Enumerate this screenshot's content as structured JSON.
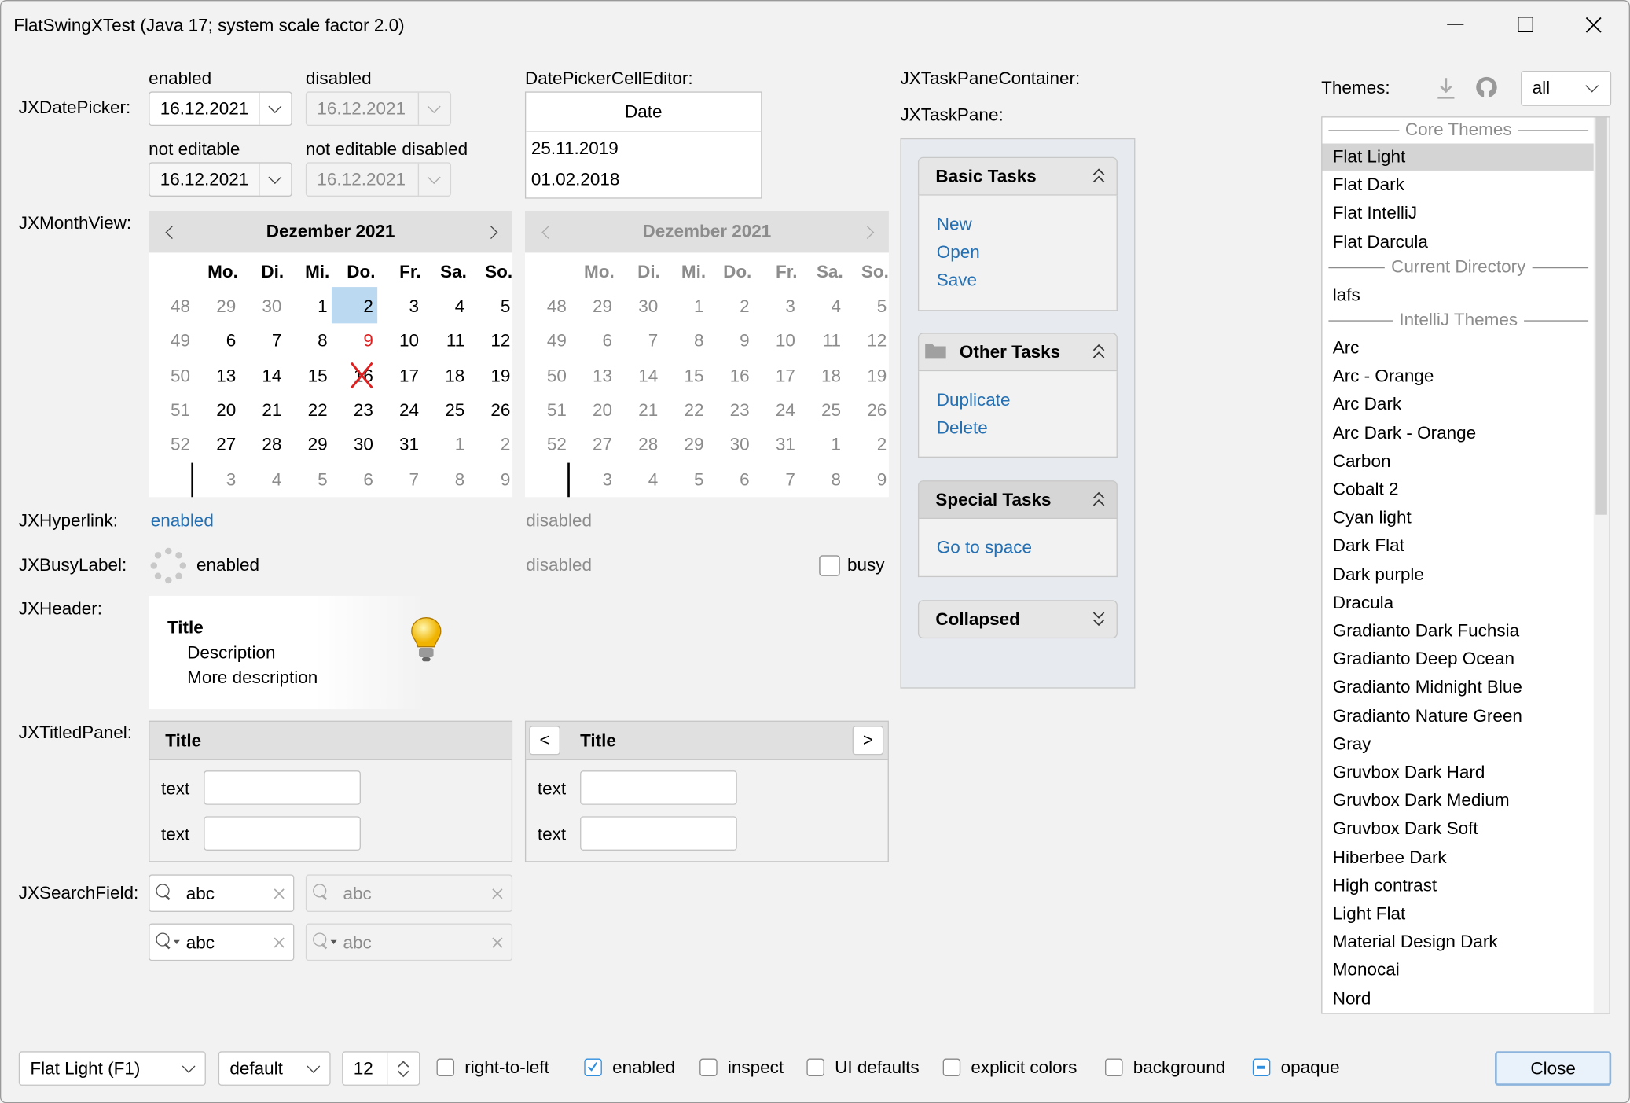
{
  "window": {
    "title": "FlatSwingXTest (Java 17;  system scale factor 2.0)"
  },
  "labels": {
    "datepicker": "JXDatePicker:",
    "monthview": "JXMonthView:",
    "hyperlink": "JXHyperlink:",
    "busylabel": "JXBusyLabel:",
    "header": "JXHeader:",
    "titledpanel": "JXTitledPanel:",
    "searchfield": "JXSearchField:",
    "taskpanecontainer": "JXTaskPaneContainer:",
    "taskpane": "JXTaskPane:",
    "celleditor": "DatePickerCellEditor:"
  },
  "datepickers": {
    "enabled_label": "enabled",
    "disabled_label": "disabled",
    "noteditable_label": "not editable",
    "noteditable_disabled_label": "not editable disabled",
    "value": "16.12.2021"
  },
  "celleditor": {
    "header": "Date",
    "rows": [
      "25.11.2019",
      "01.02.2018"
    ]
  },
  "monthview": {
    "title": "Dezember 2021",
    "weekdays": [
      "Mo.",
      "Di.",
      "Mi.",
      "Do.",
      "Fr.",
      "Sa.",
      "So."
    ],
    "weeks": [
      [
        "48",
        "29",
        "30",
        "1",
        "2",
        "3",
        "4",
        "5"
      ],
      [
        "49",
        "6",
        "7",
        "8",
        "9",
        "10",
        "11",
        "12"
      ],
      [
        "50",
        "13",
        "14",
        "15",
        "16",
        "17",
        "18",
        "19"
      ],
      [
        "51",
        "20",
        "21",
        "22",
        "23",
        "24",
        "25",
        "26"
      ],
      [
        "52",
        "27",
        "28",
        "29",
        "30",
        "31",
        "1",
        "2"
      ],
      [
        "",
        "3",
        "4",
        "5",
        "6",
        "7",
        "8",
        "9"
      ]
    ],
    "selected_day": "2",
    "flagged_day": "9",
    "unselectable_day": "16",
    "accent_selected": "#bcd9f2",
    "accent_flagged": "#e02020"
  },
  "hyperlink": {
    "enabled": "enabled",
    "disabled": "disabled"
  },
  "busylabel": {
    "enabled": "enabled",
    "disabled": "disabled",
    "busy_label": "busy",
    "busy_checked": false
  },
  "header": {
    "title": "Title",
    "description": "Description",
    "more": "More description",
    "icon": "lightbulb-icon"
  },
  "titledpanels": [
    {
      "title": "Title",
      "fields": [
        {
          "label": "text",
          "value": ""
        },
        {
          "label": "text",
          "value": ""
        }
      ]
    },
    {
      "title": "Title",
      "prev": "<",
      "next": ">",
      "fields": [
        {
          "label": "text",
          "value": ""
        },
        {
          "label": "text",
          "value": ""
        }
      ]
    }
  ],
  "searchfields": {
    "value": "abc"
  },
  "taskpanes": [
    {
      "title": "Basic Tasks",
      "links": [
        "New",
        "Open",
        "Save"
      ]
    },
    {
      "title": "Other Tasks",
      "links": [
        "Duplicate",
        "Delete"
      ]
    },
    {
      "title": "Special Tasks",
      "links": [
        "Go to space"
      ]
    },
    {
      "title": "Collapsed",
      "links": []
    }
  ],
  "themes": {
    "label": "Themes:",
    "filter": "all",
    "groups": [
      {
        "header": "Core Themes",
        "items": [
          "Flat Light",
          "Flat Dark",
          "Flat IntelliJ",
          "Flat Darcula"
        ]
      },
      {
        "header": "Current Directory",
        "items": [
          "lafs"
        ]
      },
      {
        "header": "IntelliJ Themes",
        "items": [
          "Arc",
          "Arc - Orange",
          "Arc Dark",
          "Arc Dark - Orange",
          "Carbon",
          "Cobalt 2",
          "Cyan light",
          "Dark Flat",
          "Dark purple",
          "Dracula",
          "Gradianto Dark Fuchsia",
          "Gradianto Deep Ocean",
          "Gradianto Midnight Blue",
          "Gradianto Nature Green",
          "Gray",
          "Gruvbox Dark Hard",
          "Gruvbox Dark Medium",
          "Gruvbox Dark Soft",
          "Hiberbee Dark",
          "High contrast",
          "Light Flat",
          "Material Design Dark",
          "Monocai",
          "Nord"
        ]
      }
    ],
    "selected": "Flat Light"
  },
  "bottombar": {
    "laf": "Flat Light (F1)",
    "font": "default",
    "size": "12",
    "checks": [
      {
        "label": "right-to-left",
        "checked": false
      },
      {
        "label": "enabled",
        "checked": true
      },
      {
        "label": "inspect",
        "checked": false
      },
      {
        "label": "UI defaults",
        "checked": false
      },
      {
        "label": "explicit colors",
        "checked": false
      },
      {
        "label": "background",
        "checked": false
      },
      {
        "label": "opaque",
        "checked": "indeterminate"
      }
    ],
    "close": "Close"
  }
}
